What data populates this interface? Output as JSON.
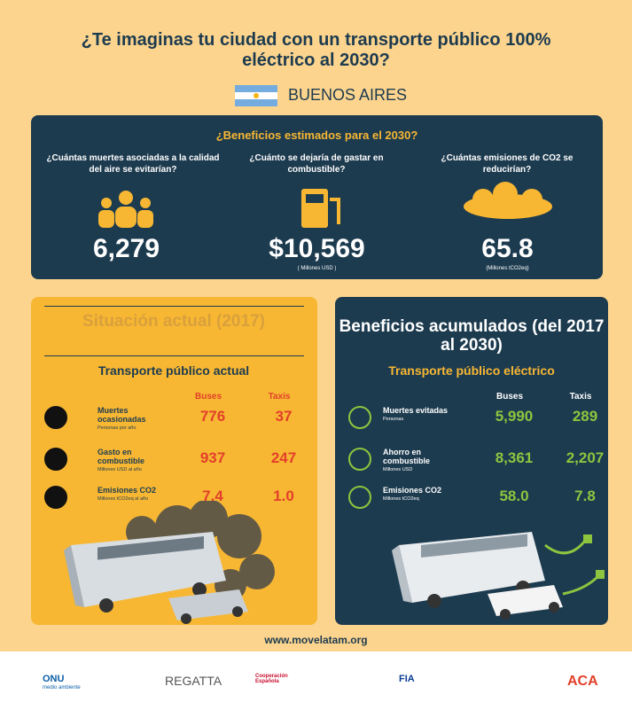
{
  "header": {
    "title": "¿Te imaginas tu ciudad con un transporte público 100% eléctrico al 2030?",
    "city": "BUENOS AIRES"
  },
  "estimated": {
    "heading": "¿Beneficios estimados para el 2030?",
    "items": [
      {
        "question": "¿Cuántas muertes asociadas a la calidad del aire se evitarían?",
        "value": "6,279"
      },
      {
        "question": "¿Cuánto se dejaría de gastar en combustible?",
        "value": "$10,569",
        "unit": "( Millones USD )"
      },
      {
        "question": "¿Cuántas emisiones de CO2 se reducirían?",
        "value": "65.8",
        "unit": "(Millones tCO2eq)"
      }
    ]
  },
  "current": {
    "title": "Situación actual (2017)",
    "subtitle": "Transporte público actual",
    "columns": [
      "Buses",
      "Taxis"
    ],
    "rows": [
      {
        "label": "Muertes ocasionadas",
        "sub": "Personas por año",
        "values": [
          "776",
          "37"
        ]
      },
      {
        "label": "Gasto en combustible",
        "sub": "Millones USD al año",
        "values": [
          "937",
          "247"
        ]
      },
      {
        "label": "Emisiones CO2",
        "sub": "Millones tCO2eq al año",
        "values": [
          "7.4",
          "1.0"
        ]
      }
    ]
  },
  "cumulative": {
    "title": "Beneficios acumulados (del 2017 al 2030)",
    "subtitle": "Transporte público eléctrico",
    "columns": [
      "Buses",
      "Taxis"
    ],
    "rows": [
      {
        "label": "Muertes evitadas",
        "sub": "Personas",
        "values": [
          "5,990",
          "289"
        ]
      },
      {
        "label": "Ahorro en combustible",
        "sub": "Millones USD",
        "values": [
          "8,361",
          "2,207"
        ]
      },
      {
        "label": "Emisiones CO2",
        "sub": "Millones tCO2eq",
        "values": [
          "58.0",
          "7.8"
        ]
      }
    ]
  },
  "footer": {
    "url": "www.movelatam.org",
    "logos": [
      "ONU",
      "medio ambiente",
      "REGATTA",
      "Cooperación Española",
      "FIA",
      "ACA"
    ]
  }
}
